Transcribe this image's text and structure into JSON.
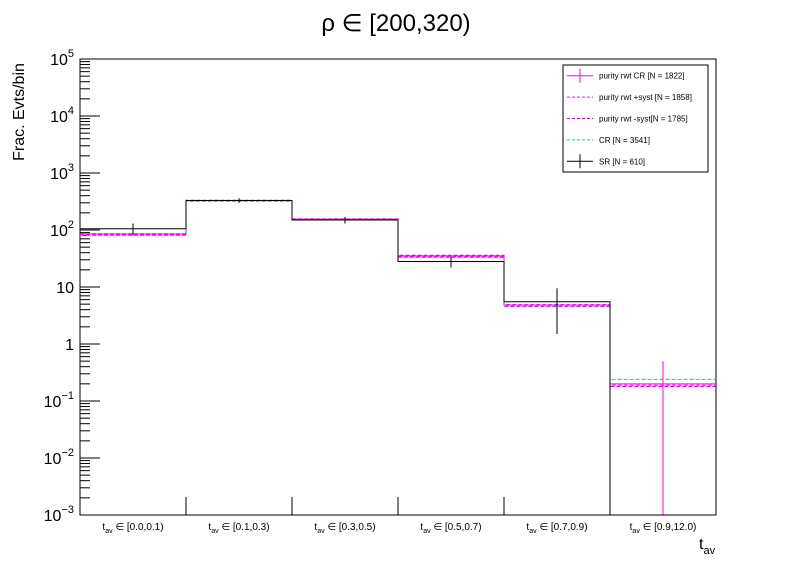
{
  "chart_data": {
    "type": "histogram",
    "title": "ρ ∈ [200,320)",
    "ylabel": "Frac. Evts/bin",
    "xlabel": "t",
    "xlabel_sub": "av",
    "yscale": "log",
    "ylim": [
      0.001,
      100000
    ],
    "categories": [
      {
        "sub": "av",
        "range": "∈ [0.0,0.1)"
      },
      {
        "sub": "av",
        "range": "∈ [0.1,0.3)"
      },
      {
        "sub": "av",
        "range": "∈ [0.3,0.5)"
      },
      {
        "sub": "av",
        "range": "∈ [0.5,0.7)"
      },
      {
        "sub": "av",
        "range": "∈ [0.7,0.9)"
      },
      {
        "sub": "av",
        "range": "∈ [0.9,12.0)"
      }
    ],
    "yticks": [
      {
        "base": "10",
        "exp": "5"
      },
      {
        "base": "10",
        "exp": "4"
      },
      {
        "base": "10",
        "exp": "3"
      },
      {
        "base": "10",
        "exp": "2"
      },
      {
        "base": "10",
        "exp": ""
      },
      {
        "base": "1",
        "exp": ""
      },
      {
        "base": "10",
        "exp": "−1"
      },
      {
        "base": "10",
        "exp": "−2"
      },
      {
        "base": "10",
        "exp": "−3"
      }
    ],
    "legend_position": "top-right",
    "grid": false,
    "series": [
      {
        "name": "purity rwt CR [N = 1822]",
        "color": "#ff00ff",
        "style": "solid",
        "values": [
          85,
          330,
          155,
          35,
          4.8,
          0.2
        ],
        "errors_low": [
          0,
          0,
          0,
          0,
          0,
          0.199
        ],
        "errors_high": [
          0,
          0,
          0,
          0,
          0,
          0.3
        ],
        "error_bars": true
      },
      {
        "name": "purity rwt +syst [N = 1858]",
        "color": "#ff00ff",
        "style": "dashed",
        "values": [
          83,
          325,
          152,
          34,
          4.6,
          0.19
        ],
        "error_bars": false
      },
      {
        "name": "purity rwt -syst[N = 1785]",
        "color": "#cc00cc",
        "style": "dashed",
        "values": [
          86,
          332,
          157,
          36,
          4.9,
          0.18
        ],
        "error_bars": false
      },
      {
        "name": "CR [N = 3541]",
        "color": "#00cccc",
        "style": "dashed",
        "values": [
          80,
          320,
          150,
          33,
          4.5,
          0.24
        ],
        "error_bars": false
      },
      {
        "name": "SR [N = 610]",
        "color": "#000000",
        "style": "solid",
        "values": [
          105,
          330,
          150,
          28,
          5.5,
          0.0
        ],
        "errors_low": [
          25,
          30,
          20,
          6,
          4,
          0
        ],
        "errors_high": [
          25,
          30,
          20,
          6,
          4,
          0
        ],
        "error_bars": true
      }
    ]
  }
}
